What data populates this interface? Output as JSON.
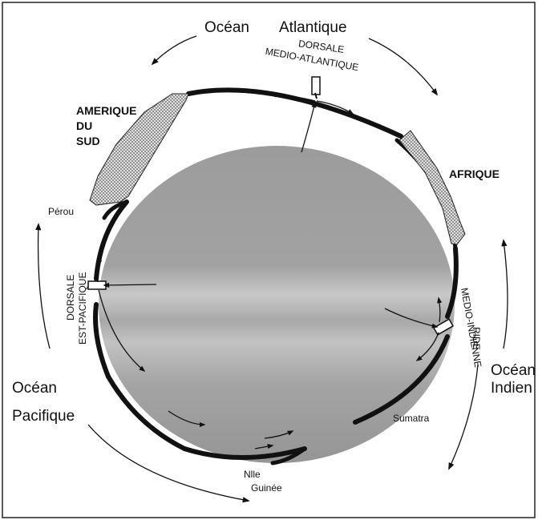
{
  "oceans": {
    "atlantic_word1": "Océan",
    "atlantic_word2": "Atlantique",
    "pacific_word1": "Océan",
    "pacific_word2": "Pacifique",
    "indian_word1": "Océan",
    "indian_word2": "Indien"
  },
  "ridges": {
    "mid_atlantic_line1": "DORSALE",
    "mid_atlantic_line2": "MEDIO-ATLANTIQUE",
    "east_pacific_line1": "DORSALE",
    "east_pacific_line2": "EST-PACIFIQUE",
    "mid_indian_line1": "RIDE",
    "mid_indian_line2": "MEDIO-INDIENNE"
  },
  "continents": {
    "south_america_line1": "AMERIQUE",
    "south_america_line2": "DU",
    "south_america_line3": "SUD",
    "africa": "AFRIQUE"
  },
  "places": {
    "peru": "Pérou",
    "sumatra": "Sumatra",
    "new_guinea_line1": "Nlle",
    "new_guinea_line2": "Guinée"
  },
  "colors": {
    "earth_fill": "#9a9a9a",
    "band_light": "#c8c8c8",
    "ink": "#111111",
    "continent_hatch": "#d4d4d4"
  }
}
